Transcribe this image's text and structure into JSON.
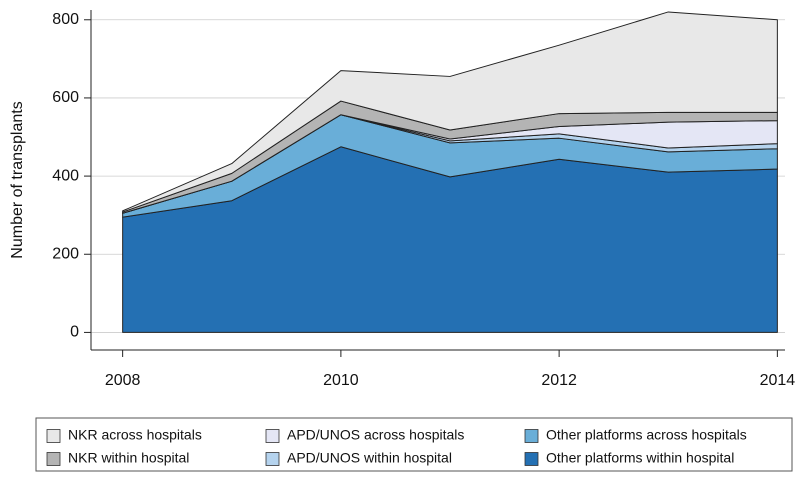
{
  "chart_data": {
    "type": "stacked-area",
    "y_label": "Number of transplants",
    "x": [
      2008,
      2009,
      2010,
      2011,
      2012,
      2013,
      2014
    ],
    "xlim": [
      2007.71,
      2014.07
    ],
    "xticks": [
      2008,
      2010,
      2012,
      2014
    ],
    "ylim": [
      -45,
      825
    ],
    "yticks": [
      0,
      200,
      400,
      600,
      800
    ],
    "grid": true,
    "legend": "bottom",
    "series": [
      {
        "name": "Other platforms within hospital",
        "color": "#2470b3",
        "values": [
          295,
          337,
          475,
          398,
          443,
          410,
          418
        ]
      },
      {
        "name": "Other platforms across hospitals",
        "color": "#69aed8",
        "values": [
          10,
          50,
          82,
          87,
          54,
          52,
          52
        ]
      },
      {
        "name": "APD/UNOS within hospital",
        "color": "#b5d3ee",
        "values": [
          0,
          0,
          0,
          5,
          11,
          10,
          13
        ]
      },
      {
        "name": "APD/UNOS across hospitals",
        "color": "#e4e6f5",
        "values": [
          0,
          0,
          0,
          5,
          19,
          66,
          59
        ]
      },
      {
        "name": "NKR within hospital",
        "color": "#b4b4b4",
        "values": [
          3,
          20,
          35,
          23,
          33,
          25,
          21
        ]
      },
      {
        "name": "NKR across hospitals",
        "color": "#e8e8e8",
        "values": [
          3,
          25,
          78,
          137,
          175,
          257,
          237
        ]
      }
    ]
  }
}
